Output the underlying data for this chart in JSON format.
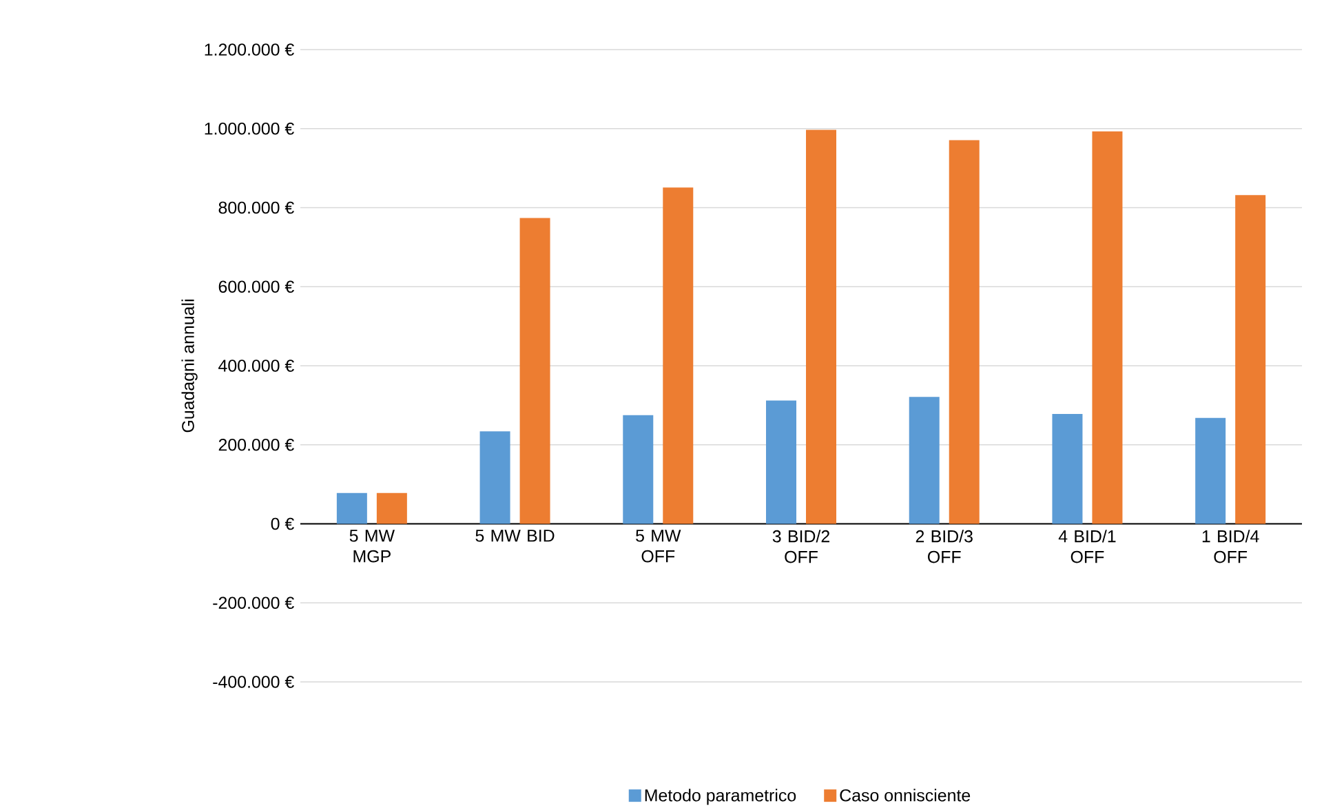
{
  "chart_data": {
    "type": "bar",
    "ylabel": "Guadagni annuali",
    "categories": [
      "5 MW MGP",
      "5 MW BID",
      "5 MW OFF",
      "3 BID/2 OFF",
      "2 BID/3 OFF",
      "4 BID/1 OFF",
      "1 BID/4 OFF"
    ],
    "series": [
      {
        "name": "Metodo parametrico",
        "color": "#5b9bd5",
        "values": [
          78000,
          234000,
          275000,
          312000,
          321000,
          278000,
          268000
        ]
      },
      {
        "name": "Caso onnisciente",
        "color": "#ed7d31",
        "values": [
          78000,
          774000,
          851000,
          997000,
          971000,
          993000,
          832000
        ]
      }
    ],
    "ylim": [
      -400000,
      1200000
    ],
    "yticks": [
      {
        "value": -400000,
        "label": "-400.000 €"
      },
      {
        "value": -200000,
        "label": "-200.000 €"
      },
      {
        "value": 0,
        "label": "0 €"
      },
      {
        "value": 200000,
        "label": "200.000 €"
      },
      {
        "value": 400000,
        "label": "400.000 €"
      },
      {
        "value": 600000,
        "label": "600.000 €"
      },
      {
        "value": 800000,
        "label": "800.000 €"
      },
      {
        "value": 1000000,
        "label": "1.000.000 €"
      },
      {
        "value": 1200000,
        "label": "1.200.000 €"
      }
    ],
    "grid": "y",
    "legend": "bottom"
  }
}
